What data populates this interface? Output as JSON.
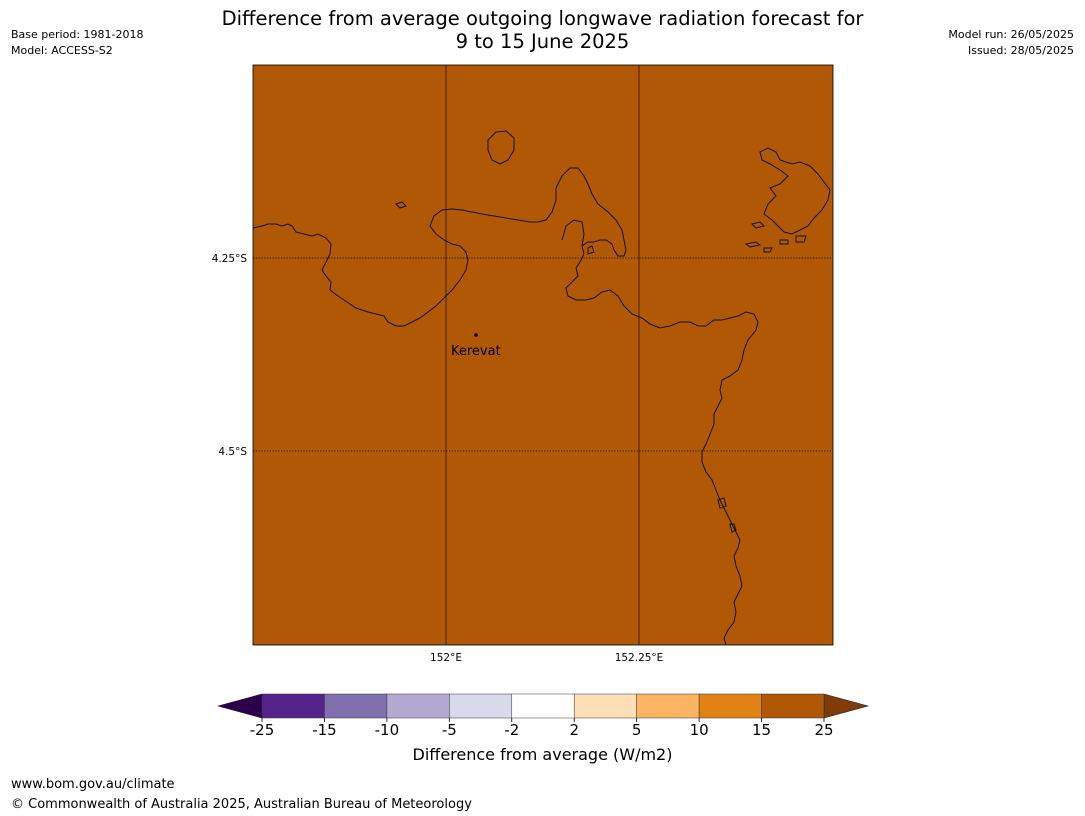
{
  "header": {
    "base_period": "Base period: 1981-2018",
    "model": "Model: ACCESS-S2",
    "title_line1": "Difference from average outgoing longwave radiation forecast for",
    "title_line2": "9 to 15 June 2025",
    "model_run": "Model run: 26/05/2025",
    "issued": "Issued: 28/05/2025"
  },
  "map": {
    "fill_color": "#b15806",
    "fill_value_range": [
      15,
      25
    ],
    "lat_labels": [
      "4.25°S",
      "4.5°S"
    ],
    "lon_labels": [
      "152°E",
      "152.25°E"
    ],
    "place_label": "Kerevat"
  },
  "colorbar": {
    "ticks": [
      "-25",
      "-15",
      "-10",
      "-5",
      "-2",
      "2",
      "5",
      "10",
      "15",
      "25"
    ],
    "colors": [
      "#55248b",
      "#8070ad",
      "#b2a9d2",
      "#d8d9eb",
      "#ffffff",
      "#fddfb6",
      "#fbb562",
      "#e08214",
      "#b15806"
    ],
    "under_color": "#2d004b",
    "over_color": "#7f3b08",
    "label": "Difference from average (W/m2)"
  },
  "footer": {
    "url": "www.bom.gov.au/climate",
    "copyright": "© Commonwealth of Australia 2025, Australian Bureau of Meteorology"
  }
}
